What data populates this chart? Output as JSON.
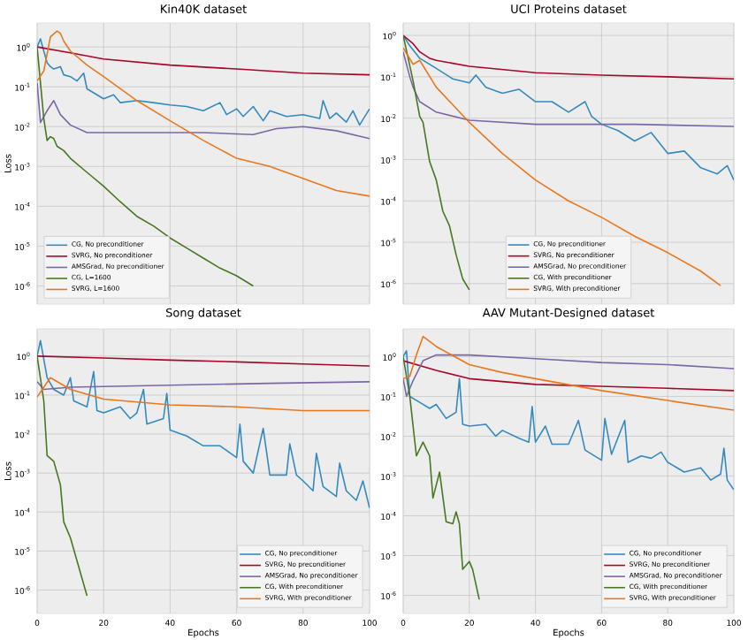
{
  "chart_data": [
    {
      "type": "line",
      "title": "Kin40K dataset",
      "ylabel": "Loss",
      "log": "y",
      "grid": true,
      "legend": "bottom left",
      "tick_labels": "y",
      "xlim": [
        0,
        100
      ],
      "xticks": [
        0,
        20,
        40,
        60,
        80,
        100
      ],
      "ylim": [
        3.5e-07,
        4
      ],
      "yticks": [
        {
          "value": 1e-06,
          "label": "10$^{-6}$"
        },
        {
          "value": 1e-05,
          "label": "10$^{-5}$"
        },
        {
          "value": 0.0001,
          "label": "10$^{-4}$"
        },
        {
          "value": 0.001,
          "label": "10$^{-3}$"
        },
        {
          "value": 0.01,
          "label": "10$^{-2}$"
        },
        {
          "value": 0.1,
          "label": "10$^{-1}$"
        },
        {
          "value": 1,
          "label": "10$^{0}$"
        }
      ],
      "series": [
        {
          "name": "CG, No preconditioner",
          "color": "#348ABD",
          "x": [
            0,
            1,
            2,
            3,
            4,
            5,
            7,
            8,
            10,
            12,
            14,
            15,
            18,
            20,
            23,
            25,
            30,
            35,
            40,
            45,
            50,
            55,
            57,
            60,
            62,
            65,
            68,
            70,
            75,
            80,
            85,
            86,
            88,
            90,
            93,
            95,
            97,
            100
          ],
          "values": [
            1.0,
            1.6,
            0.79,
            0.4,
            0.32,
            0.28,
            0.32,
            0.2,
            0.18,
            0.14,
            0.22,
            0.089,
            0.063,
            0.05,
            0.063,
            0.04,
            0.045,
            0.04,
            0.035,
            0.032,
            0.025,
            0.04,
            0.02,
            0.028,
            0.018,
            0.032,
            0.014,
            0.025,
            0.018,
            0.02,
            0.016,
            0.045,
            0.016,
            0.022,
            0.013,
            0.025,
            0.011,
            0.028
          ]
        },
        {
          "name": "SVRG, No preconditioner",
          "color": "#A60628",
          "x": [
            0,
            10,
            20,
            40,
            60,
            80,
            100
          ],
          "values": [
            1.0,
            0.71,
            0.5,
            0.35,
            0.28,
            0.22,
            0.2
          ]
        },
        {
          "name": "AMSGrad, No preconditioner",
          "color": "#7A68A6",
          "x": [
            0,
            1,
            3,
            5,
            7,
            10,
            15,
            30,
            50,
            65,
            72,
            80,
            90,
            100
          ],
          "values": [
            0.126,
            0.0126,
            0.025,
            0.045,
            0.02,
            0.011,
            0.0071,
            0.0071,
            0.0071,
            0.0063,
            0.0089,
            0.01,
            0.0079,
            0.005
          ]
        },
        {
          "name": "CG, L=1600",
          "color": "#467821",
          "x": [
            0,
            1,
            2,
            3,
            4,
            5,
            6,
            8,
            10,
            15,
            20,
            25,
            30,
            35,
            40,
            45,
            50,
            55,
            60,
            65
          ],
          "values": [
            1.0,
            0.126,
            0.016,
            0.0045,
            0.0056,
            0.005,
            0.0032,
            0.0025,
            0.0016,
            0.00071,
            0.00032,
            0.00013,
            5.6e-05,
            3.2e-05,
            1.6e-05,
            8.9e-06,
            5e-06,
            2.8e-06,
            1.8e-06,
            1e-06
          ]
        },
        {
          "name": "SVRG, L=1600",
          "color": "#E8771E",
          "x": [
            0,
            2,
            4,
            6,
            7,
            8,
            10,
            15,
            20,
            30,
            40,
            50,
            60,
            70,
            80,
            90,
            100
          ],
          "values": [
            0.14,
            0.25,
            1.8,
            2.5,
            2.2,
            1.4,
            0.79,
            0.35,
            0.18,
            0.045,
            0.014,
            0.0045,
            0.0016,
            0.001,
            0.0005,
            0.00025,
            0.00018
          ]
        }
      ]
    },
    {
      "type": "line",
      "title": "UCI Proteins dataset",
      "log": "y",
      "grid": true,
      "legend": "bottom",
      "tick_labels": "y",
      "xlim": [
        0,
        100
      ],
      "xticks": [
        0,
        20,
        40,
        60,
        80,
        100
      ],
      "ylim": [
        3.2e-07,
        2
      ],
      "yticks": [
        {
          "value": 1e-06,
          "label": "10$^{-6}$"
        },
        {
          "value": 1e-05,
          "label": "10$^{-5}$"
        },
        {
          "value": 0.0001,
          "label": "10$^{-4}$"
        },
        {
          "value": 0.001,
          "label": "10$^{-3}$"
        },
        {
          "value": 0.01,
          "label": "10$^{-2}$"
        },
        {
          "value": 0.1,
          "label": "10$^{-1}$"
        },
        {
          "value": 1,
          "label": "10$^{0}$"
        }
      ],
      "series": [
        {
          "name": "CG, No preconditioner",
          "color": "#348ABD",
          "x": [
            0,
            2,
            5,
            10,
            15,
            20,
            22,
            25,
            30,
            35,
            40,
            45,
            50,
            55,
            57,
            60,
            65,
            70,
            75,
            80,
            85,
            90,
            95,
            98,
            100
          ],
          "values": [
            1.0,
            0.56,
            0.28,
            0.16,
            0.089,
            0.071,
            0.11,
            0.056,
            0.04,
            0.05,
            0.025,
            0.025,
            0.014,
            0.025,
            0.011,
            0.0071,
            0.005,
            0.0028,
            0.0045,
            0.0014,
            0.0016,
            0.00063,
            0.00045,
            0.00071,
            0.00032
          ]
        },
        {
          "name": "SVRG, No preconditioner",
          "color": "#A60628",
          "x": [
            0,
            3,
            5,
            8,
            10,
            20,
            40,
            60,
            80,
            100
          ],
          "values": [
            1.0,
            0.63,
            0.4,
            0.28,
            0.25,
            0.18,
            0.126,
            0.11,
            0.1,
            0.089
          ]
        },
        {
          "name": "AMSGrad, No preconditioner",
          "color": "#7A68A6",
          "x": [
            0,
            2,
            3,
            5,
            10,
            20,
            40,
            70,
            100
          ],
          "values": [
            0.4,
            0.1,
            0.056,
            0.025,
            0.014,
            0.0089,
            0.0071,
            0.0071,
            0.0063
          ]
        },
        {
          "name": "CG, With preconditioner",
          "color": "#467821",
          "x": [
            0,
            3,
            5,
            6,
            8,
            10,
            12,
            14,
            16,
            18,
            20
          ],
          "values": [
            1.0,
            0.079,
            0.011,
            0.0079,
            0.00089,
            0.00032,
            5.6e-05,
            2.5e-05,
            5e-06,
            1.3e-06,
            7.1e-07
          ]
        },
        {
          "name": "SVRG, With preconditioner",
          "color": "#E8771E",
          "x": [
            0,
            3,
            5,
            10,
            20,
            30,
            40,
            50,
            60,
            70,
            80,
            90,
            96
          ],
          "values": [
            0.5,
            0.2,
            0.25,
            0.056,
            0.0079,
            0.0014,
            0.00032,
            0.0001,
            4e-05,
            1.4e-05,
            5.6e-06,
            2e-06,
            8.9e-07
          ]
        }
      ]
    },
    {
      "type": "line",
      "title": "Song dataset",
      "xlabel": "Epochs",
      "ylabel": "Loss",
      "log": "y",
      "grid": true,
      "legend": "bottom right",
      "xlim": [
        0,
        100
      ],
      "xticks": [
        0,
        20,
        40,
        60,
        80,
        100
      ],
      "ylim": [
        2.5e-07,
        5
      ],
      "yticks": [
        {
          "value": 1e-06,
          "label": "10$^{-6}$"
        },
        {
          "value": 1e-05,
          "label": "10$^{-5}$"
        },
        {
          "value": 0.0001,
          "label": "10$^{-4}$"
        },
        {
          "value": 0.001,
          "label": "10$^{-3}$"
        },
        {
          "value": 0.01,
          "label": "10$^{-2}$"
        },
        {
          "value": 0.1,
          "label": "10$^{-1}$"
        },
        {
          "value": 1,
          "label": "10$^{0}$"
        }
      ],
      "series": [
        {
          "name": "CG, No preconditioner",
          "color": "#348ABD",
          "x": [
            0,
            1,
            3,
            5,
            8,
            10,
            11,
            15,
            17,
            18,
            20,
            25,
            28,
            30,
            32,
            33,
            38,
            39,
            40,
            45,
            50,
            55,
            60,
            61,
            62,
            65,
            68,
            70,
            75,
            76,
            78,
            80,
            83,
            84,
            86,
            90,
            91,
            93,
            96,
            97,
            98,
            100
          ],
          "values": [
            1.0,
            2.5,
            0.28,
            0.14,
            0.1,
            0.28,
            0.071,
            0.05,
            0.4,
            0.04,
            0.035,
            0.05,
            0.025,
            0.035,
            0.14,
            0.018,
            0.025,
            0.11,
            0.0126,
            0.0089,
            0.005,
            0.005,
            0.0025,
            0.018,
            0.002,
            0.001,
            0.014,
            0.00089,
            0.00089,
            0.0056,
            0.00089,
            0.00063,
            0.00035,
            0.0032,
            0.00045,
            0.00025,
            0.0018,
            0.00035,
            0.0002,
            0.00035,
            0.00063,
            0.000126
          ]
        },
        {
          "name": "SVRG, No preconditioner",
          "color": "#A60628",
          "x": [
            0,
            20,
            40,
            60,
            80,
            100
          ],
          "values": [
            1.0,
            0.89,
            0.79,
            0.71,
            0.63,
            0.56
          ]
        },
        {
          "name": "AMSGrad, No preconditioner",
          "color": "#7A68A6",
          "x": [
            0,
            2,
            10,
            40,
            70,
            100
          ],
          "values": [
            0.22,
            0.14,
            0.16,
            0.18,
            0.2,
            0.22
          ]
        },
        {
          "name": "CG, With preconditioner",
          "color": "#467821",
          "x": [
            0,
            2,
            3,
            5,
            7,
            8,
            10,
            12,
            15
          ],
          "values": [
            1.0,
            0.071,
            0.0028,
            0.002,
            0.0005,
            5.6e-05,
            2.2e-05,
            5.6e-06,
            7.1e-07
          ]
        },
        {
          "name": "SVRG, With preconditioner",
          "color": "#E8771E",
          "x": [
            0,
            2,
            4,
            10,
            20,
            40,
            60,
            80,
            100
          ],
          "values": [
            0.089,
            0.16,
            0.28,
            0.14,
            0.079,
            0.056,
            0.05,
            0.04,
            0.04
          ]
        }
      ]
    },
    {
      "type": "line",
      "title": "AAV Mutant-Designed dataset",
      "xlabel": "Epochs",
      "log": "y",
      "grid": true,
      "legend": "bottom right",
      "xlim": [
        0,
        100
      ],
      "xticks": [
        0,
        20,
        40,
        60,
        80,
        100
      ],
      "ylim": [
        3.5e-07,
        5
      ],
      "yticks": [
        {
          "value": 1e-06,
          "label": "10$^{-6}$"
        },
        {
          "value": 1e-05,
          "label": "10$^{-5}$"
        },
        {
          "value": 0.0001,
          "label": "10$^{-4}$"
        },
        {
          "value": 0.001,
          "label": "10$^{-3}$"
        },
        {
          "value": 0.01,
          "label": "10$^{-2}$"
        },
        {
          "value": 0.1,
          "label": "10$^{-1}$"
        },
        {
          "value": 1,
          "label": "10$^{0}$"
        }
      ],
      "series": [
        {
          "name": "CG, No preconditioner",
          "color": "#348ABD",
          "x": [
            0,
            1,
            2,
            5,
            8,
            10,
            13,
            16,
            17,
            18,
            20,
            25,
            28,
            30,
            35,
            38,
            39,
            40,
            43,
            45,
            50,
            53,
            55,
            60,
            61,
            63,
            67,
            68,
            72,
            75,
            78,
            80,
            85,
            90,
            93,
            96,
            97,
            98,
            100
          ],
          "values": [
            1.0,
            1.4,
            0.1,
            0.071,
            0.05,
            0.063,
            0.028,
            0.04,
            0.28,
            0.02,
            0.018,
            0.02,
            0.01,
            0.014,
            0.0089,
            0.0071,
            0.056,
            0.0071,
            0.018,
            0.0063,
            0.0063,
            0.025,
            0.0045,
            0.0025,
            0.028,
            0.0035,
            0.025,
            0.0022,
            0.0032,
            0.0028,
            0.004,
            0.0022,
            0.00126,
            0.0016,
            0.00079,
            0.00112,
            0.005,
            0.00079,
            0.00045
          ]
        },
        {
          "name": "SVRG, No preconditioner",
          "color": "#A60628",
          "x": [
            0,
            10,
            20,
            40,
            60,
            80,
            100
          ],
          "values": [
            0.79,
            0.45,
            0.28,
            0.2,
            0.18,
            0.16,
            0.14
          ]
        },
        {
          "name": "AMSGrad, No preconditioner",
          "color": "#7A68A6",
          "x": [
            0,
            1,
            3,
            6,
            10,
            20,
            40,
            60,
            80,
            100
          ],
          "values": [
            0.28,
            0.1,
            0.25,
            0.79,
            1.1,
            1.1,
            0.89,
            0.71,
            0.63,
            0.5
          ]
        },
        {
          "name": "CG, With preconditioner",
          "color": "#467821",
          "x": [
            0,
            2,
            4,
            6,
            8,
            9,
            11,
            13,
            15,
            16,
            17,
            18,
            20,
            21,
            23
          ],
          "values": [
            1.0,
            0.1,
            0.0032,
            0.0071,
            0.0032,
            0.00028,
            0.00126,
            7.1e-05,
            6.3e-05,
            0.000126,
            6.3e-05,
            4.5e-06,
            7.1e-06,
            4.5e-06,
            7.9e-07
          ]
        },
        {
          "name": "SVRG, With preconditioner",
          "color": "#E8771E",
          "x": [
            0,
            2,
            4,
            6,
            7,
            10,
            20,
            30,
            40,
            60,
            80,
            100
          ],
          "values": [
            0.28,
            0.32,
            1.1,
            3.2,
            2.8,
            1.8,
            0.63,
            0.4,
            0.28,
            0.14,
            0.079,
            0.045
          ]
        }
      ]
    }
  ]
}
